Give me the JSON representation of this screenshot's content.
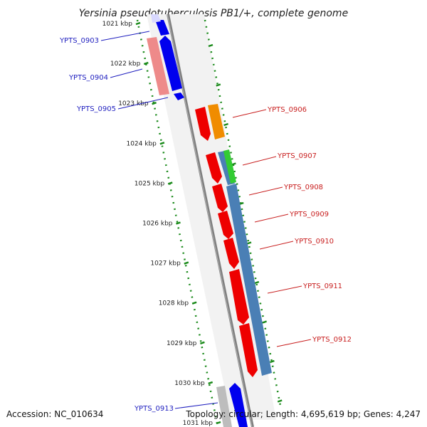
{
  "title": "Yersinia pseudotuberculosis PB1/+, complete genome",
  "footer": {
    "accession": "Accession: NC_010634",
    "summary": "Topology: circular; Length: 4,695,619 bp; Genes: 4,247"
  },
  "ticks": [
    "1021 kbp",
    "1022 kbp",
    "1023 kbp",
    "1024 kbp",
    "1025 kbp",
    "1026 kbp",
    "1027 kbp",
    "1028 kbp",
    "1029 kbp",
    "1030 kbp",
    "1031 kbp"
  ],
  "left_labels": [
    "YPTS_0903",
    "YPTS_0904",
    "YPTS_0905",
    "YPTS_0913"
  ],
  "right_labels": [
    "YPTS_0906",
    "YPTS_0907",
    "YPTS_0908",
    "YPTS_0909",
    "YPTS_0910",
    "YPTS_0911",
    "YPTS_0912"
  ],
  "colors": {
    "blue_gene": "#0000ee",
    "red_gene": "#ee0000",
    "pink_gene": "#ee8a8a",
    "orange_gene": "#f08c00",
    "green_gene": "#33cc33",
    "steel_gene": "#4a7fb5",
    "backbone": "#808080",
    "tick_green": "#1a8a1a",
    "label_blue": "#1f1fbf",
    "label_red": "#c81e1e"
  }
}
